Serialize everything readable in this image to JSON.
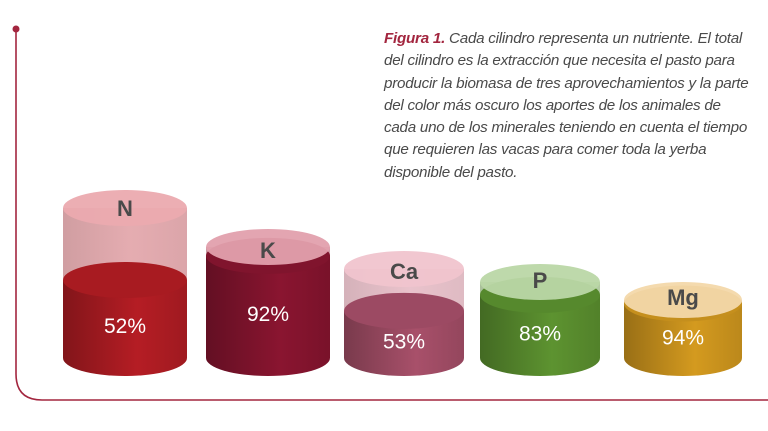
{
  "caption": {
    "label": "Figura 1.",
    "text": "Cada cilindro representa un nutriente. El total del cilindro es la extracción que necesita el pasto para producir la biomasa de tres aprovechamientos y la parte del color más oscuro los aportes de los animales de cada uno de los minerales teniendo en cuenta el tiempo que requieren las vacas para comer toda la yerba disponible del pasto."
  },
  "colors": {
    "frame": "#a3263f",
    "caption_label": "#a3263f",
    "caption_text": "#4a4a4a"
  },
  "chart_data": {
    "type": "bar",
    "style": "3d-cylinders",
    "categories": [
      "N",
      "K",
      "Ca",
      "P",
      "Mg"
    ],
    "values": [
      52,
      92,
      53,
      83,
      94
    ],
    "value_labels": [
      "52%",
      "92%",
      "53%",
      "83%",
      "94%"
    ],
    "unit": "%",
    "ylim": [
      0,
      100
    ],
    "colors": [
      {
        "filled": "#b51d24",
        "empty": "#e2a3a8"
      },
      {
        "filled": "#8a1530",
        "empty": "#d89aa6"
      },
      {
        "filled": "#a8506a",
        "empty": "#e7bcc6"
      },
      {
        "filled": "#5d9330",
        "empty": "#b3cfa0"
      },
      {
        "filled": "#d49a1f",
        "empty": "#ead0a3"
      }
    ]
  }
}
